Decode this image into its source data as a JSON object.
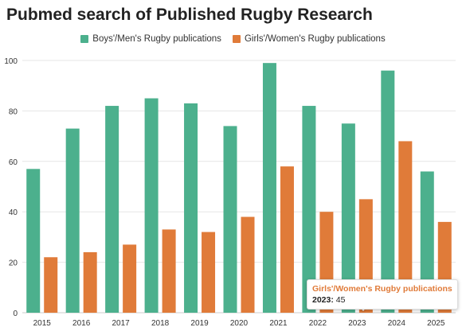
{
  "chart_data": {
    "type": "bar",
    "title": "Pubmed search of Published Rugby Research",
    "xlabel": "",
    "ylabel": "",
    "categories": [
      "2015",
      "2016",
      "2017",
      "2018",
      "2019",
      "2020",
      "2021",
      "2022",
      "2023",
      "2024",
      "2025"
    ],
    "series": [
      {
        "name": "Boys'/Men's Rugby publications",
        "color": "#4cb08d",
        "values": [
          57,
          73,
          82,
          85,
          83,
          74,
          99,
          82,
          75,
          96,
          56
        ]
      },
      {
        "name": "Girls'/Women's Rugby publications",
        "color": "#e07b39",
        "values": [
          22,
          24,
          27,
          33,
          32,
          38,
          58,
          40,
          45,
          68,
          36
        ]
      }
    ],
    "ylim": [
      0,
      100
    ],
    "yticks": [
      0,
      20,
      40,
      60,
      80,
      100
    ],
    "grid": true,
    "legend_position": "top-center"
  },
  "tooltip": {
    "series": "Girls'/Women's Rugby publications",
    "year_label": "2023:",
    "value": "45",
    "color": "#e07b39"
  }
}
